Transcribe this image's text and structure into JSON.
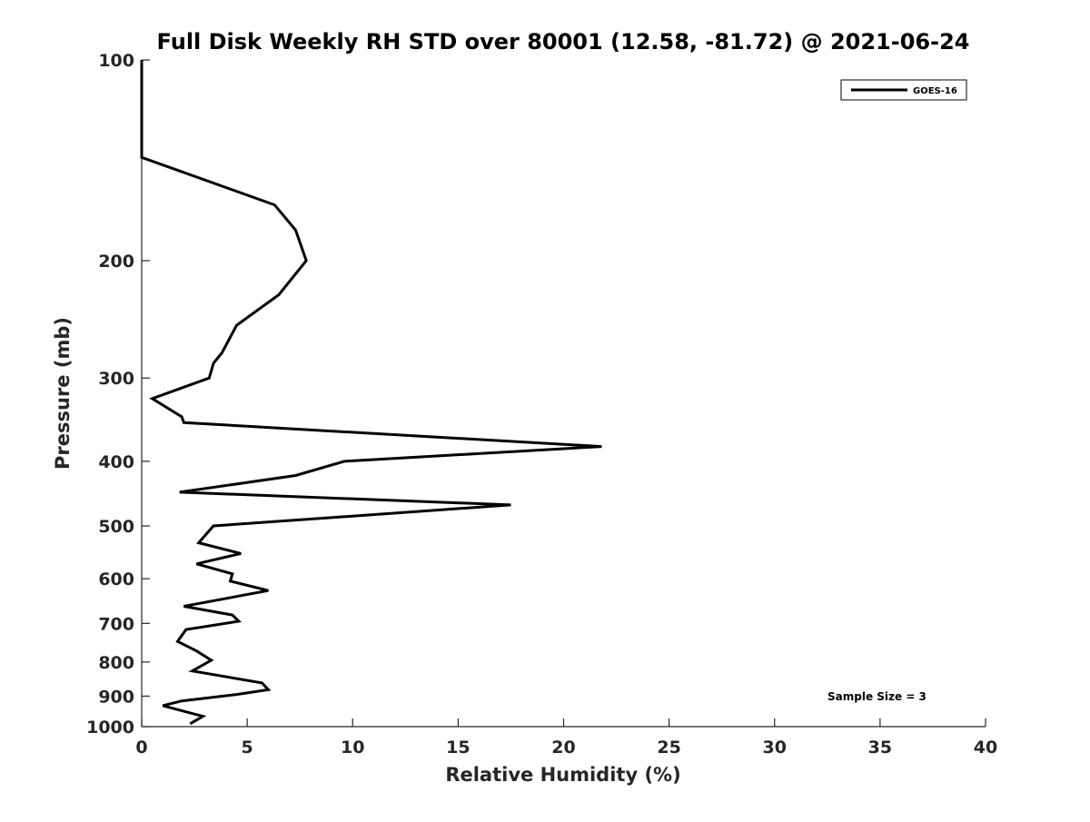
{
  "chart_data": {
    "type": "line",
    "title": "Full Disk Weekly RH STD over 80001 (12.58, -81.72) @ 2021-06-24",
    "xlabel": "Relative Humidity (%)",
    "ylabel": "Pressure (mb)",
    "xlim": [
      0,
      40
    ],
    "ylim": [
      1000,
      100
    ],
    "y_scale": "log",
    "xticks": [
      0,
      5,
      10,
      15,
      20,
      25,
      30,
      35,
      40
    ],
    "yticks": [
      100,
      200,
      300,
      400,
      500,
      600,
      700,
      800,
      900,
      1000
    ],
    "grid": false,
    "legend_position": "top-right",
    "annotation": "Sample Size = 3",
    "series": [
      {
        "name": "GOES-16",
        "color": "#000000",
        "x": [
          0.0,
          0.0,
          6.3,
          7.3,
          7.8,
          6.5,
          4.5,
          3.8,
          3.4,
          3.2,
          0.5,
          1.9,
          2.0,
          21.8,
          9.6,
          7.3,
          1.8,
          17.5,
          3.4,
          2.7,
          4.7,
          2.6,
          4.3,
          4.2,
          6.0,
          2.0,
          4.3,
          4.6,
          2.1,
          1.7,
          2.6,
          3.3,
          2.4,
          5.7,
          6.0,
          4.5,
          1.9,
          1.0,
          2.9,
          2.3
        ],
        "y": [
          100,
          140,
          165,
          180,
          200,
          225,
          250,
          275,
          285,
          300,
          322,
          343,
          350,
          380,
          400,
          420,
          445,
          465,
          500,
          530,
          550,
          570,
          590,
          605,
          625,
          660,
          680,
          695,
          715,
          745,
          770,
          795,
          825,
          860,
          880,
          895,
          915,
          930,
          965,
          990
        ]
      }
    ]
  }
}
